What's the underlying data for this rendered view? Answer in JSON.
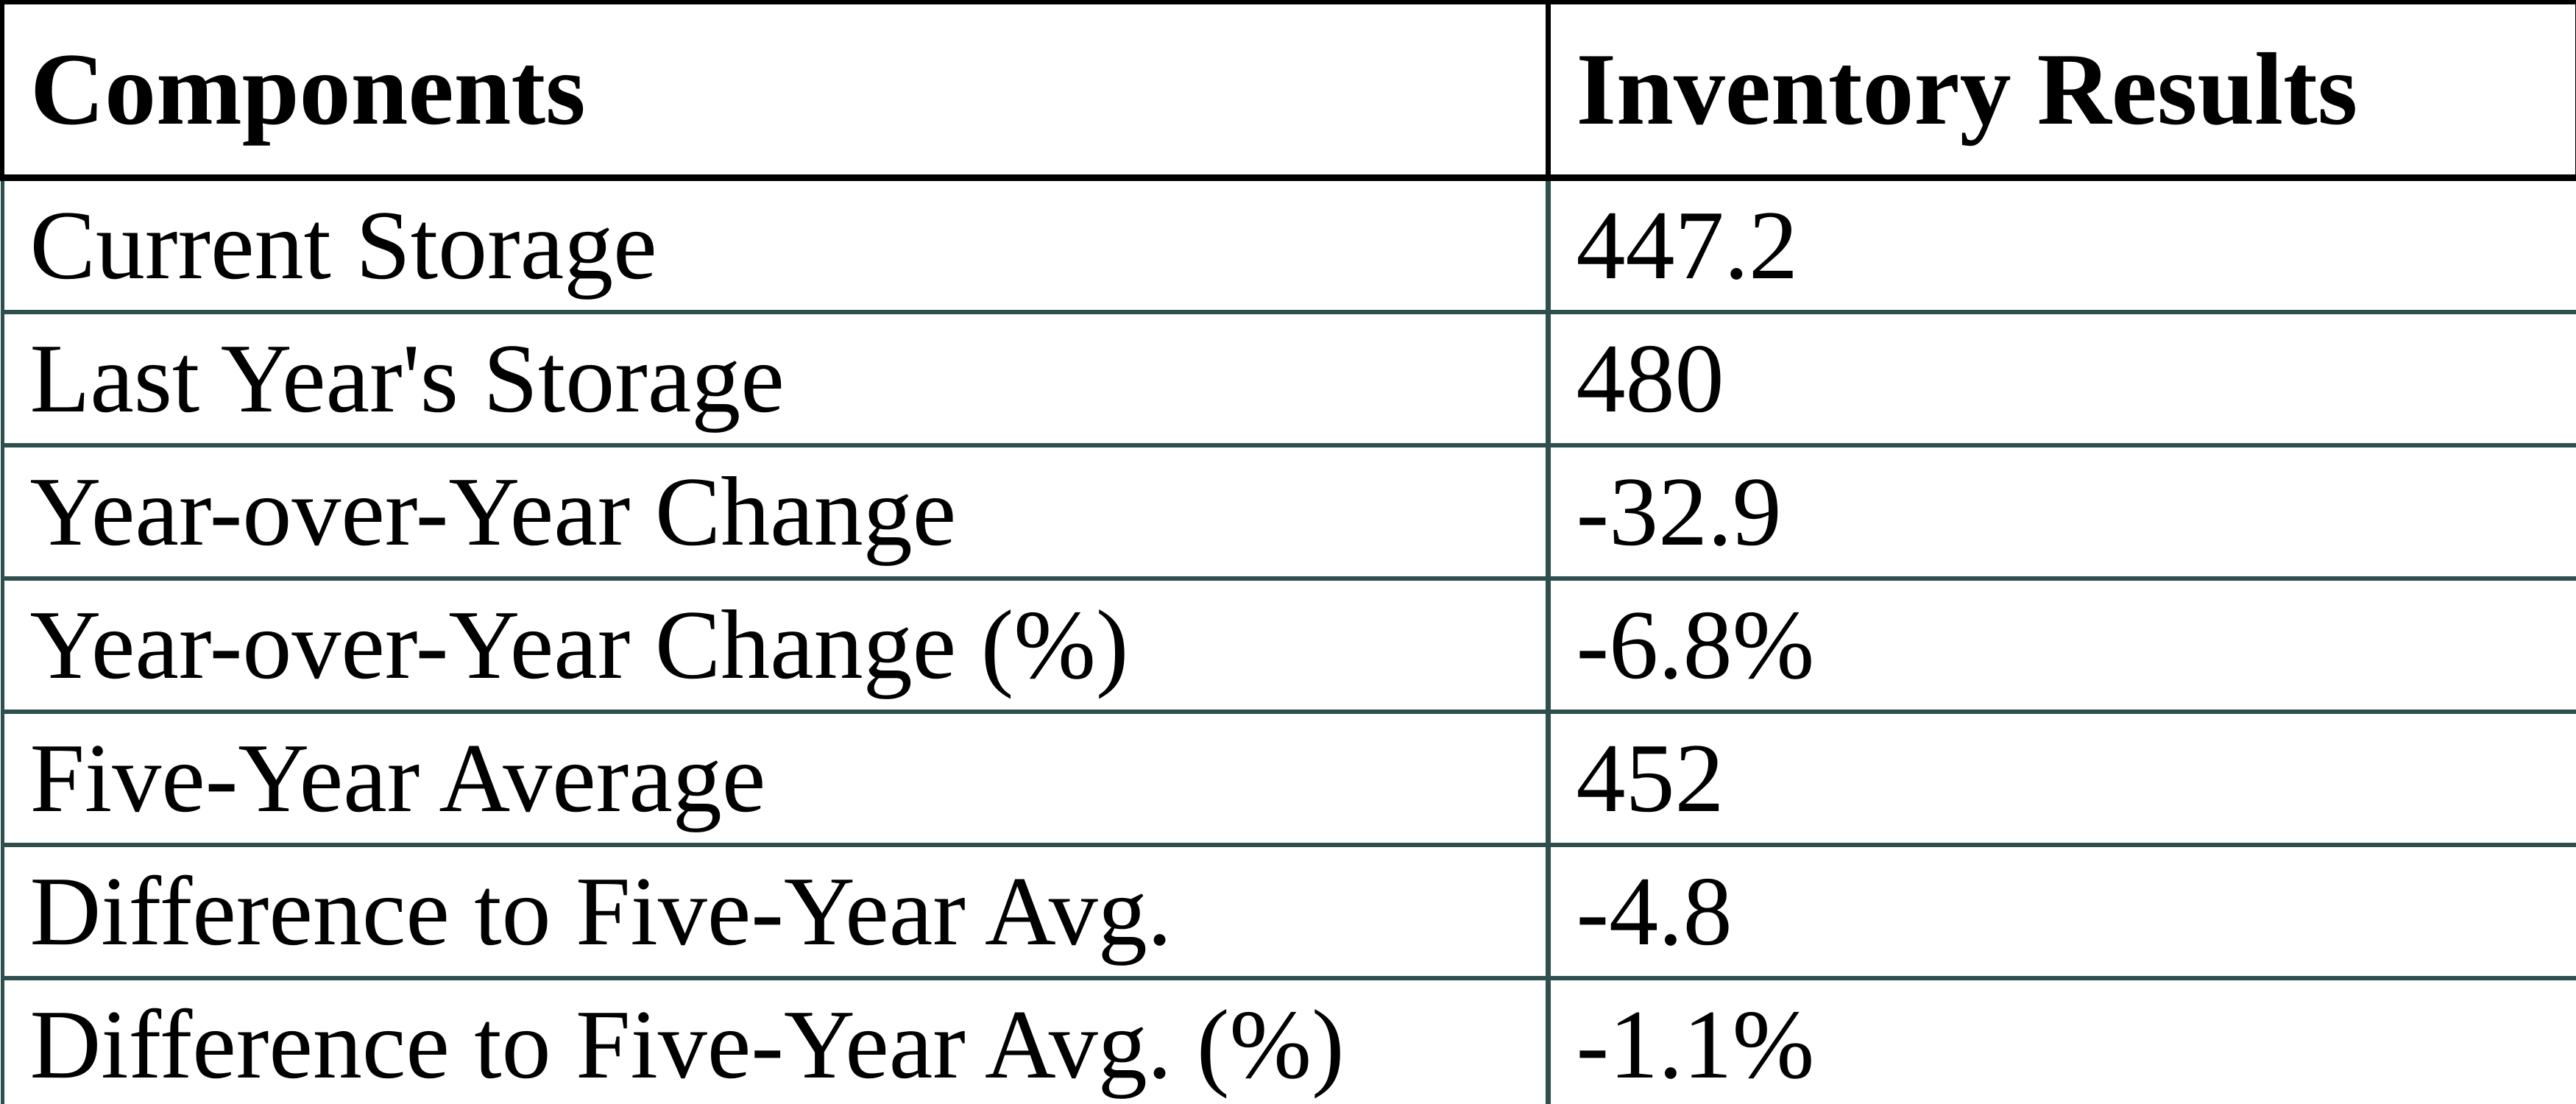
{
  "colors": {
    "background": "#ffffff",
    "header_border": "#000000",
    "grid_border": "#2f4f4f",
    "text": "#000000"
  },
  "chart_data": {
    "type": "table",
    "columns": [
      "Components",
      "Inventory Results"
    ],
    "rows": [
      {
        "component": "Current Storage",
        "result": "447.2"
      },
      {
        "component": "Last Year's Storage",
        "result": "480"
      },
      {
        "component": "Year-over-Year Change",
        "result": "-32.9"
      },
      {
        "component": "Year-over-Year Change (%)",
        "result": "-6.8%"
      },
      {
        "component": "Five-Year Average",
        "result": "452"
      },
      {
        "component": "Difference to Five-Year Avg.",
        "result": "-4.8"
      },
      {
        "component": "Difference to Five-Year Avg. (%)",
        "result": "-1.1%"
      }
    ]
  }
}
